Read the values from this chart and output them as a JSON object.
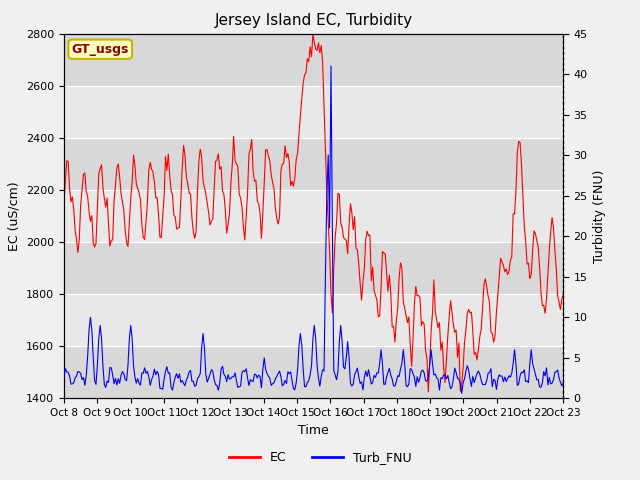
{
  "title": "Jersey Island EC, Turbidity",
  "xlabel": "Time",
  "ylabel_left": "EC (uS/cm)",
  "ylabel_right": "Turbidity (FNU)",
  "ylim_left": [
    1400,
    2800
  ],
  "ylim_right": [
    0,
    45
  ],
  "yticks_left": [
    1400,
    1600,
    1800,
    2000,
    2200,
    2400,
    2600,
    2800
  ],
  "yticks_right": [
    0,
    5,
    10,
    15,
    20,
    25,
    30,
    35,
    40,
    45
  ],
  "xticklabels": [
    "Oct 8",
    "Oct 9",
    "Oct 10",
    "Oct 11",
    "Oct 12",
    "Oct 13",
    "Oct 14",
    "Oct 15",
    "Oct 16",
    "Oct 17",
    "Oct 18",
    "Oct 19",
    "Oct 20",
    "Oct 21",
    "Oct 22",
    "Oct 23"
  ],
  "bg_color": "#f0f0f0",
  "plot_bg_color": "#e8e8e8",
  "band_light": "#ebebeb",
  "band_dark": "#d8d8d8",
  "ec_color": "red",
  "turb_color": "blue",
  "legend_ec": "EC",
  "legend_turb": "Turb_FNU",
  "watermark_text": "GT_usgs",
  "watermark_color": "#8b0000",
  "watermark_bg": "#ffffc0",
  "watermark_border": "#c8b400"
}
